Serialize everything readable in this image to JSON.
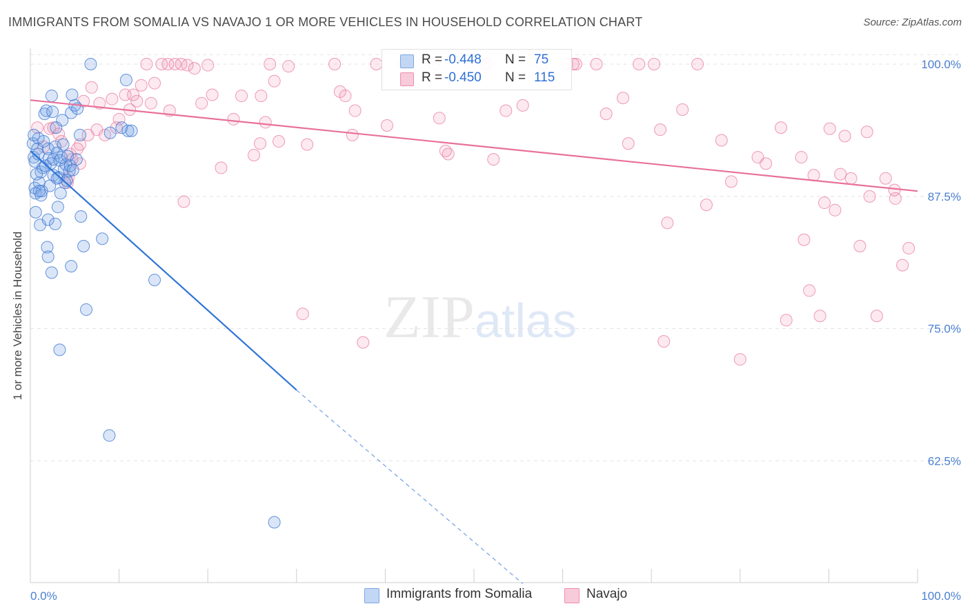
{
  "header": {
    "title": "IMMIGRANTS FROM SOMALIA VS NAVAJO 1 OR MORE VEHICLES IN HOUSEHOLD CORRELATION CHART",
    "source": "Source: ZipAtlas.com"
  },
  "watermark": {
    "zip": "ZIP",
    "atlas": "atlas"
  },
  "legend": {
    "rows": [
      {
        "r_label": "R =",
        "r_value": "-0.448",
        "n_label": "N =",
        "n_value": "75",
        "color": "#7aa7e6"
      },
      {
        "r_label": "R =",
        "r_value": "-0.450",
        "n_label": "N =",
        "n_value": "115",
        "color": "#f08cac"
      }
    ],
    "bottom": [
      {
        "label": "Immigrants from Somalia",
        "color": "#7aa7e6"
      },
      {
        "label": "Navajo",
        "color": "#f08cac"
      }
    ]
  },
  "chart_data": {
    "type": "scatter",
    "title": "IMMIGRANTS FROM SOMALIA VS NAVAJO 1 OR MORE VEHICLES IN HOUSEHOLD CORRELATION CHART",
    "xlabel": "",
    "ylabel": "1 or more Vehicles in Household",
    "xlim": [
      0,
      100
    ],
    "ylim": [
      51,
      101.5
    ],
    "x_tick_labels": [
      "0.0%",
      "100.0%"
    ],
    "y_ticks": [
      62.5,
      75.0,
      87.5,
      100.0
    ],
    "y_tick_labels": [
      "62.5%",
      "75.0%",
      "87.5%",
      "100.0%"
    ],
    "grid": true,
    "series": [
      {
        "name": "Immigrants from Somalia",
        "color": "#7aa7e6",
        "trend": {
          "x0": 0,
          "y0": 91.8,
          "x1": 30,
          "y1": 69.2,
          "dash_to_x": 55.5,
          "dash_to_y": 50.9
        },
        "points": [
          [
            0.3,
            92.5
          ],
          [
            0.4,
            91.2
          ],
          [
            0.5,
            90.8
          ],
          [
            0.5,
            88.3
          ],
          [
            0.6,
            87.8
          ],
          [
            0.8,
            92.0
          ],
          [
            0.9,
            91.5
          ],
          [
            1.0,
            88.8
          ],
          [
            1.2,
            89.8
          ],
          [
            1.3,
            88.0
          ],
          [
            1.4,
            90.2
          ],
          [
            1.6,
            95.3
          ],
          [
            1.8,
            95.6
          ],
          [
            2.0,
            92.0
          ],
          [
            2.1,
            91.1
          ],
          [
            2.3,
            90.6
          ],
          [
            2.4,
            97.0
          ],
          [
            2.5,
            95.5
          ],
          [
            2.6,
            89.5
          ],
          [
            2.8,
            92.2
          ],
          [
            3.0,
            91.6
          ],
          [
            3.2,
            89.3
          ],
          [
            3.3,
            90.9
          ],
          [
            3.5,
            91.2
          ],
          [
            3.6,
            94.7
          ],
          [
            3.8,
            90.1
          ],
          [
            3.9,
            88.8
          ],
          [
            4.0,
            90.5
          ],
          [
            4.2,
            91.3
          ],
          [
            4.4,
            89.9
          ],
          [
            4.5,
            90.4
          ],
          [
            4.6,
            95.4
          ],
          [
            4.7,
            97.1
          ],
          [
            5.0,
            96.1
          ],
          [
            5.3,
            95.8
          ],
          [
            5.6,
            93.3
          ],
          [
            3.4,
            87.8
          ],
          [
            3.1,
            86.5
          ],
          [
            1.1,
            84.8
          ],
          [
            2.0,
            85.3
          ],
          [
            2.8,
            84.9
          ],
          [
            5.7,
            85.6
          ],
          [
            1.9,
            82.7
          ],
          [
            6.0,
            82.8
          ],
          [
            8.1,
            83.5
          ],
          [
            2.4,
            80.3
          ],
          [
            4.6,
            80.9
          ],
          [
            14.0,
            79.6
          ],
          [
            6.3,
            76.8
          ],
          [
            3.3,
            73.0
          ],
          [
            9.0,
            93.5
          ],
          [
            10.3,
            94.0
          ],
          [
            11.0,
            93.7
          ],
          [
            11.4,
            93.7
          ],
          [
            10.8,
            98.5
          ],
          [
            6.8,
            100.0
          ],
          [
            2.0,
            81.8
          ],
          [
            8.9,
            64.9
          ],
          [
            27.5,
            56.7
          ],
          [
            0.6,
            86.0
          ],
          [
            1.5,
            92.7
          ],
          [
            2.2,
            88.5
          ],
          [
            1.7,
            90.4
          ],
          [
            0.9,
            93.0
          ],
          [
            3.7,
            92.4
          ],
          [
            4.1,
            89.0
          ],
          [
            0.7,
            89.6
          ],
          [
            1.2,
            87.6
          ],
          [
            2.9,
            94.0
          ],
          [
            5.2,
            91.0
          ],
          [
            0.4,
            93.3
          ],
          [
            1.0,
            88.0
          ],
          [
            3.0,
            89.2
          ],
          [
            4.8,
            90.0
          ],
          [
            2.6,
            91.0
          ]
        ]
      },
      {
        "name": "Navajo",
        "color": "#f08cac",
        "trend": {
          "x0": 0,
          "y0": 96.6,
          "x1": 100,
          "y1": 88.0
        },
        "points": [
          [
            0.8,
            94.0
          ],
          [
            1.5,
            92.2
          ],
          [
            2.2,
            93.9
          ],
          [
            2.6,
            94.0
          ],
          [
            3.2,
            93.4
          ],
          [
            3.5,
            92.7
          ],
          [
            4.5,
            91.5
          ],
          [
            4.7,
            91.0
          ],
          [
            5.3,
            92.0
          ],
          [
            5.6,
            92.4
          ],
          [
            4.2,
            88.8
          ],
          [
            4.3,
            89.3
          ],
          [
            5.6,
            90.6
          ],
          [
            6.0,
            96.5
          ],
          [
            6.5,
            93.3
          ],
          [
            6.9,
            97.8
          ],
          [
            7.5,
            93.8
          ],
          [
            7.8,
            96.3
          ],
          [
            8.4,
            93.3
          ],
          [
            9.2,
            96.7
          ],
          [
            9.7,
            94.0
          ],
          [
            10.0,
            94.8
          ],
          [
            10.7,
            97.1
          ],
          [
            11.2,
            95.7
          ],
          [
            11.6,
            97.1
          ],
          [
            12.0,
            96.5
          ],
          [
            12.5,
            98.0
          ],
          [
            13.1,
            100.0
          ],
          [
            13.6,
            96.3
          ],
          [
            14.0,
            98.2
          ],
          [
            14.8,
            100.0
          ],
          [
            15.5,
            100.0
          ],
          [
            15.7,
            95.6
          ],
          [
            16.3,
            100.0
          ],
          [
            17.0,
            100.0
          ],
          [
            17.3,
            87.0
          ],
          [
            17.7,
            99.9
          ],
          [
            18.5,
            99.6
          ],
          [
            19.3,
            96.3
          ],
          [
            20.0,
            99.9
          ],
          [
            20.5,
            97.1
          ],
          [
            21.5,
            90.2
          ],
          [
            22.9,
            94.8
          ],
          [
            23.8,
            97.0
          ],
          [
            25.2,
            91.4
          ],
          [
            25.9,
            92.5
          ],
          [
            26.0,
            97.0
          ],
          [
            26.5,
            94.5
          ],
          [
            27.0,
            100.0
          ],
          [
            27.5,
            98.4
          ],
          [
            28.0,
            92.7
          ],
          [
            29.1,
            99.8
          ],
          [
            30.7,
            76.4
          ],
          [
            31.2,
            92.4
          ],
          [
            34.3,
            100.0
          ],
          [
            34.9,
            97.4
          ],
          [
            35.5,
            97.0
          ],
          [
            36.3,
            93.3
          ],
          [
            36.6,
            95.6
          ],
          [
            37.5,
            73.7
          ],
          [
            39.0,
            100.0
          ],
          [
            40.2,
            94.2
          ],
          [
            42.1,
            100.0
          ],
          [
            45.5,
            100.0
          ],
          [
            46.1,
            94.9
          ],
          [
            46.8,
            91.8
          ],
          [
            47.1,
            91.5
          ],
          [
            51.2,
            100.0
          ],
          [
            51.5,
            100.0
          ],
          [
            52.2,
            91.0
          ],
          [
            53.6,
            95.6
          ],
          [
            55.5,
            96.1
          ],
          [
            57.6,
            100.0
          ],
          [
            60.5,
            100.0
          ],
          [
            61.2,
            100.0
          ],
          [
            61.5,
            100.0
          ],
          [
            63.8,
            100.0
          ],
          [
            64.9,
            95.3
          ],
          [
            66.8,
            96.8
          ],
          [
            67.4,
            92.5
          ],
          [
            68.6,
            100.0
          ],
          [
            70.3,
            100.0
          ],
          [
            71.0,
            93.8
          ],
          [
            71.4,
            73.8
          ],
          [
            71.8,
            85.0
          ],
          [
            73.5,
            95.7
          ],
          [
            75.2,
            100.0
          ],
          [
            76.2,
            86.7
          ],
          [
            77.9,
            92.8
          ],
          [
            79.0,
            88.9
          ],
          [
            80.0,
            72.1
          ],
          [
            82.0,
            91.2
          ],
          [
            82.9,
            90.6
          ],
          [
            84.6,
            94.0
          ],
          [
            85.2,
            75.8
          ],
          [
            86.9,
            91.2
          ],
          [
            87.2,
            83.4
          ],
          [
            87.8,
            78.6
          ],
          [
            88.3,
            89.5
          ],
          [
            89.0,
            76.2
          ],
          [
            89.5,
            86.9
          ],
          [
            90.1,
            93.9
          ],
          [
            90.7,
            86.2
          ],
          [
            91.3,
            89.6
          ],
          [
            91.8,
            93.2
          ],
          [
            92.5,
            89.2
          ],
          [
            93.5,
            82.8
          ],
          [
            94.3,
            93.6
          ],
          [
            94.6,
            87.5
          ],
          [
            95.4,
            76.2
          ],
          [
            96.4,
            89.2
          ],
          [
            97.4,
            88.1
          ],
          [
            97.5,
            87.3
          ],
          [
            98.3,
            81.0
          ],
          [
            99.0,
            82.6
          ]
        ]
      }
    ]
  }
}
